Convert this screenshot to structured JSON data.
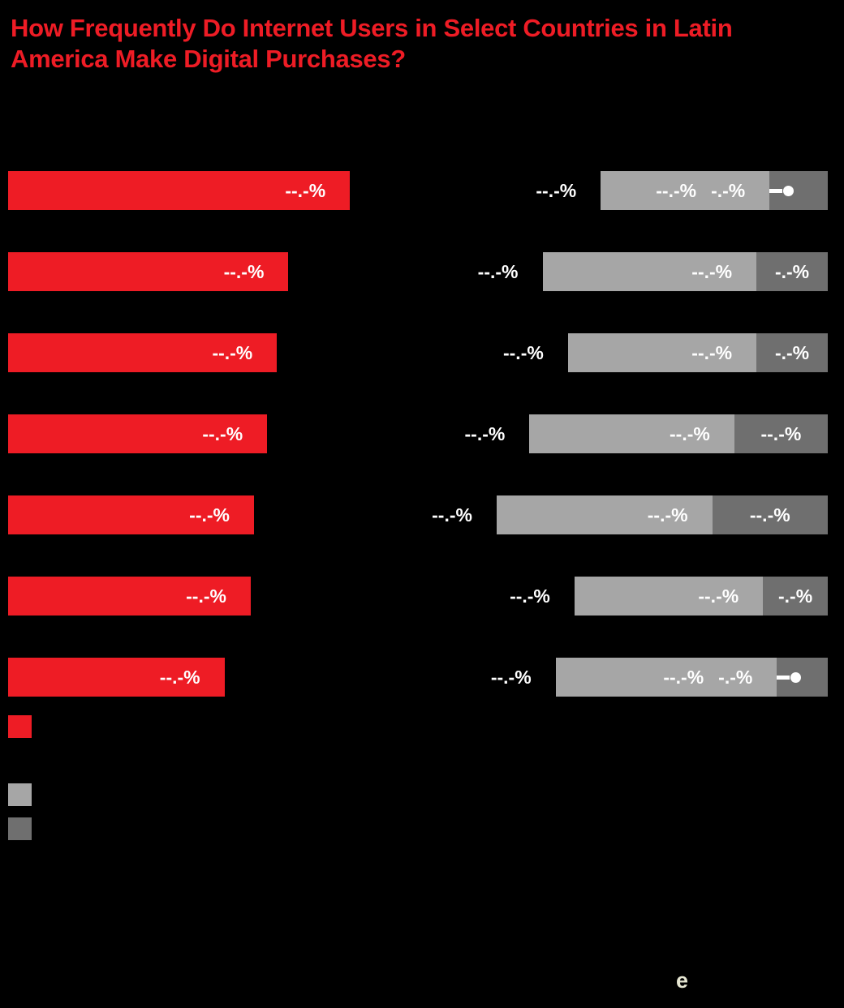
{
  "title": {
    "text": "How Frequently Do Internet Users in Select Countries in Latin America Make Digital Purchases?"
  },
  "colors": {
    "background": "#000000",
    "accent_red": "#EE1C25",
    "light_gray": "#A6A6A6",
    "dark_gray": "#6F6F6F",
    "label_text": "#FFFFFF"
  },
  "footer": {
    "logo_letter": "e"
  },
  "legend": {
    "items": [
      {
        "swatch": "red"
      },
      {
        "swatch": "light_gray"
      },
      {
        "swatch": "dark_gray"
      }
    ]
  },
  "chart_data": {
    "type": "bar",
    "orientation": "horizontal",
    "stacked": true,
    "xlim_pct": [
      0,
      100
    ],
    "rows": [
      {
        "segments": [
          {
            "color": "red",
            "pct": 41.7,
            "label": "--.-%",
            "label_align": "right"
          },
          {
            "color": "black",
            "pct": 30.6,
            "label": "--.-%",
            "label_align": "right"
          },
          {
            "color": "light",
            "pct": 20.6,
            "label": "--.-%",
            "label_align": "right"
          },
          {
            "color": "dark",
            "pct": 7.1,
            "label": "-.-%",
            "label_align": "previous",
            "marker": true
          }
        ]
      },
      {
        "segments": [
          {
            "color": "red",
            "pct": 34.2,
            "label": "--.-%",
            "label_align": "right"
          },
          {
            "color": "black",
            "pct": 31.0,
            "label": "--.-%",
            "label_align": "right"
          },
          {
            "color": "light",
            "pct": 26.1,
            "label": "--.-%",
            "label_align": "right"
          },
          {
            "color": "dark",
            "pct": 8.7,
            "label": "-.-%",
            "label_align": "center"
          }
        ]
      },
      {
        "segments": [
          {
            "color": "red",
            "pct": 32.8,
            "label": "--.-%",
            "label_align": "right"
          },
          {
            "color": "black",
            "pct": 35.5,
            "label": "--.-%",
            "label_align": "right"
          },
          {
            "color": "light",
            "pct": 23.0,
            "label": "--.-%",
            "label_align": "right"
          },
          {
            "color": "dark",
            "pct": 8.7,
            "label": "-.-%",
            "label_align": "center"
          }
        ]
      },
      {
        "segments": [
          {
            "color": "red",
            "pct": 31.6,
            "label": "--.-%",
            "label_align": "right"
          },
          {
            "color": "black",
            "pct": 32.0,
            "label": "--.-%",
            "label_align": "right"
          },
          {
            "color": "light",
            "pct": 25.0,
            "label": "--.-%",
            "label_align": "right"
          },
          {
            "color": "dark",
            "pct": 11.4,
            "label": "--.-%",
            "label_align": "center"
          }
        ]
      },
      {
        "segments": [
          {
            "color": "red",
            "pct": 30.0,
            "label": "--.-%",
            "label_align": "right"
          },
          {
            "color": "black",
            "pct": 29.6,
            "label": "--.-%",
            "label_align": "right"
          },
          {
            "color": "light",
            "pct": 26.3,
            "label": "--.-%",
            "label_align": "right"
          },
          {
            "color": "dark",
            "pct": 14.1,
            "label": "--.-%",
            "label_align": "center"
          }
        ]
      },
      {
        "segments": [
          {
            "color": "red",
            "pct": 29.6,
            "label": "--.-%",
            "label_align": "right"
          },
          {
            "color": "black",
            "pct": 39.5,
            "label": "--.-%",
            "label_align": "right"
          },
          {
            "color": "light",
            "pct": 23.0,
            "label": "--.-%",
            "label_align": "right"
          },
          {
            "color": "dark",
            "pct": 7.9,
            "label": "-.-%",
            "label_align": "center"
          }
        ]
      },
      {
        "segments": [
          {
            "color": "red",
            "pct": 26.4,
            "label": "--.-%",
            "label_align": "right"
          },
          {
            "color": "black",
            "pct": 40.4,
            "label": "--.-%",
            "label_align": "right"
          },
          {
            "color": "light",
            "pct": 27.0,
            "label": "--.-%",
            "label_align": "right"
          },
          {
            "color": "dark",
            "pct": 6.2,
            "label": "-.-%",
            "label_align": "previous",
            "marker": true
          }
        ]
      }
    ]
  }
}
